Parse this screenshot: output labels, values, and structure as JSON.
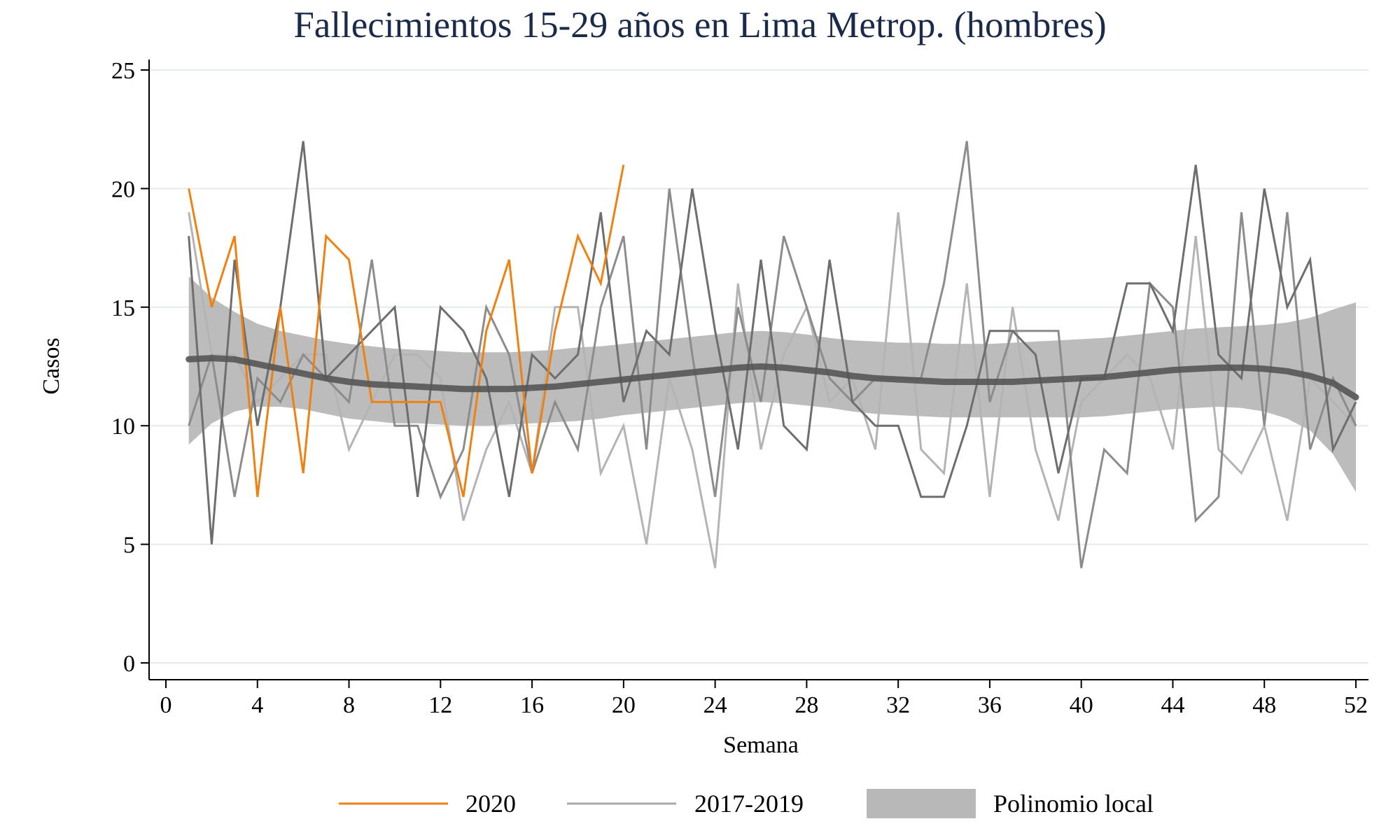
{
  "chart_data": {
    "type": "line",
    "title": "Fallecimientos 15-29 años en Lima Metrop. (hombres)",
    "xlabel": "Semana",
    "ylabel": "Casos",
    "xlim": [
      0,
      52
    ],
    "ylim": [
      0,
      25
    ],
    "xticks": [
      0,
      4,
      8,
      12,
      16,
      20,
      24,
      28,
      32,
      36,
      40,
      44,
      48,
      52
    ],
    "yticks": [
      0,
      5,
      10,
      15,
      20,
      25
    ],
    "grid": "horizontal",
    "legend_position": "bottom",
    "series": [
      {
        "name": "2017-2019",
        "color": "#b4b4b4",
        "x": [
          1,
          2,
          3,
          4,
          5,
          6,
          7,
          8,
          9,
          10,
          11,
          12,
          13,
          14,
          15,
          16,
          17,
          18,
          19,
          20,
          21,
          22,
          23,
          24,
          25,
          26,
          27,
          28,
          29,
          30,
          31,
          32,
          33,
          34,
          35,
          36,
          37,
          38,
          39,
          40,
          41,
          42,
          43,
          44,
          45,
          46,
          47,
          48,
          49,
          50,
          51,
          52
        ],
        "values": [
          19,
          13,
          13,
          11,
          12,
          13,
          13,
          9,
          11,
          13,
          13,
          12,
          6,
          9,
          11,
          8,
          15,
          15,
          8,
          10,
          5,
          12,
          9,
          4,
          16,
          9,
          13,
          15,
          11,
          12,
          9,
          19,
          9,
          8,
          16,
          7,
          15,
          9,
          6,
          11,
          12,
          13,
          12,
          9,
          18,
          9,
          8,
          10,
          6,
          12,
          11,
          10
        ]
      },
      {
        "name": "",
        "color": "#8c8c8c",
        "x": [
          1,
          2,
          3,
          4,
          5,
          6,
          7,
          8,
          9,
          10,
          11,
          12,
          13,
          14,
          15,
          16,
          17,
          18,
          19,
          20,
          21,
          22,
          23,
          24,
          25,
          26,
          27,
          28,
          29,
          30,
          31,
          32,
          33,
          34,
          35,
          36,
          37,
          38,
          39,
          40,
          41,
          42,
          43,
          44,
          45,
          46,
          47,
          48,
          49,
          50,
          51,
          52
        ],
        "values": [
          10,
          13,
          7,
          12,
          11,
          13,
          12,
          11,
          17,
          10,
          10,
          7,
          9,
          15,
          13,
          8,
          11,
          9,
          15,
          18,
          9,
          20,
          13,
          7,
          15,
          11,
          18,
          15,
          12,
          11,
          12,
          12,
          12,
          16,
          22,
          11,
          14,
          14,
          14,
          4,
          9,
          8,
          16,
          15,
          6,
          7,
          19,
          10,
          19,
          9,
          12,
          10
        ]
      },
      {
        "name": "",
        "color": "#6e6e6e",
        "x": [
          1,
          2,
          3,
          4,
          5,
          6,
          7,
          8,
          9,
          10,
          11,
          12,
          13,
          14,
          15,
          16,
          17,
          18,
          19,
          20,
          21,
          22,
          23,
          24,
          25,
          26,
          27,
          28,
          29,
          30,
          31,
          32,
          33,
          34,
          35,
          36,
          37,
          38,
          39,
          40,
          41,
          42,
          43,
          44,
          45,
          46,
          47,
          48,
          49,
          50,
          51,
          52
        ],
        "values": [
          18,
          5,
          17,
          10,
          15,
          22,
          12,
          13,
          14,
          15,
          7,
          15,
          14,
          12,
          7,
          13,
          12,
          13,
          19,
          11,
          14,
          13,
          20,
          14,
          9,
          17,
          10,
          9,
          17,
          11,
          10,
          10,
          7,
          7,
          10,
          14,
          14,
          13,
          8,
          12,
          12,
          16,
          16,
          14,
          21,
          13,
          12,
          20,
          15,
          17,
          9,
          11
        ]
      },
      {
        "name": "2020",
        "color": "#f08010",
        "x": [
          1,
          2,
          3,
          4,
          5,
          6,
          7,
          8,
          9,
          10,
          11,
          12,
          13,
          14,
          15,
          16,
          17,
          18,
          19,
          20
        ],
        "values": [
          20,
          15,
          18,
          7,
          15,
          8,
          18,
          17,
          11,
          11,
          11,
          11,
          7,
          14,
          17,
          8,
          14,
          18,
          16,
          21
        ]
      }
    ],
    "local_polynomial": {
      "name": "Polinomio local",
      "fill_color": "#b0b0b0",
      "line_color": "#555555",
      "x": [
        1,
        2,
        3,
        4,
        5,
        6,
        7,
        8,
        9,
        10,
        11,
        12,
        13,
        14,
        15,
        16,
        17,
        18,
        19,
        20,
        21,
        22,
        23,
        24,
        25,
        26,
        27,
        28,
        29,
        30,
        31,
        32,
        33,
        34,
        35,
        36,
        37,
        38,
        39,
        40,
        41,
        42,
        43,
        44,
        45,
        46,
        47,
        48,
        49,
        50,
        51,
        52
      ],
      "fit": [
        12.8,
        12.85,
        12.8,
        12.6,
        12.4,
        12.2,
        12.0,
        11.85,
        11.75,
        11.7,
        11.65,
        11.6,
        11.55,
        11.55,
        11.55,
        11.6,
        11.65,
        11.75,
        11.85,
        11.95,
        12.05,
        12.15,
        12.25,
        12.35,
        12.45,
        12.5,
        12.45,
        12.35,
        12.25,
        12.1,
        12.0,
        11.95,
        11.9,
        11.85,
        11.85,
        11.85,
        11.85,
        11.9,
        11.95,
        12.0,
        12.05,
        12.15,
        12.25,
        12.35,
        12.4,
        12.45,
        12.45,
        12.4,
        12.3,
        12.1,
        11.8,
        11.2
      ],
      "upper": [
        16.3,
        15.4,
        14.8,
        14.3,
        14.0,
        13.8,
        13.6,
        13.45,
        13.35,
        13.25,
        13.2,
        13.15,
        13.1,
        13.1,
        13.1,
        13.15,
        13.2,
        13.3,
        13.35,
        13.45,
        13.55,
        13.65,
        13.75,
        13.85,
        13.95,
        14.0,
        13.95,
        13.85,
        13.7,
        13.6,
        13.55,
        13.5,
        13.5,
        13.45,
        13.45,
        13.45,
        13.5,
        13.55,
        13.6,
        13.65,
        13.7,
        13.8,
        13.9,
        14.0,
        14.1,
        14.15,
        14.2,
        14.25,
        14.35,
        14.55,
        14.9,
        15.2
      ],
      "lower": [
        9.2,
        10.1,
        10.6,
        10.8,
        10.8,
        10.7,
        10.5,
        10.3,
        10.2,
        10.1,
        10.1,
        10.05,
        10.0,
        10.0,
        10.05,
        10.1,
        10.15,
        10.2,
        10.3,
        10.45,
        10.55,
        10.65,
        10.75,
        10.85,
        10.95,
        11.0,
        10.95,
        10.85,
        10.75,
        10.6,
        10.5,
        10.45,
        10.4,
        10.35,
        10.35,
        10.35,
        10.35,
        10.35,
        10.35,
        10.35,
        10.4,
        10.5,
        10.6,
        10.7,
        10.75,
        10.8,
        10.75,
        10.6,
        10.3,
        9.8,
        8.8,
        7.2
      ]
    }
  },
  "legend": {
    "items": [
      {
        "label": "2020",
        "type": "line",
        "color": "#f08010"
      },
      {
        "label": "2017-2019",
        "type": "line",
        "color": "#a8a8a8"
      },
      {
        "label": "Polinomio local",
        "type": "area",
        "color": "#b8b8b8"
      }
    ]
  }
}
